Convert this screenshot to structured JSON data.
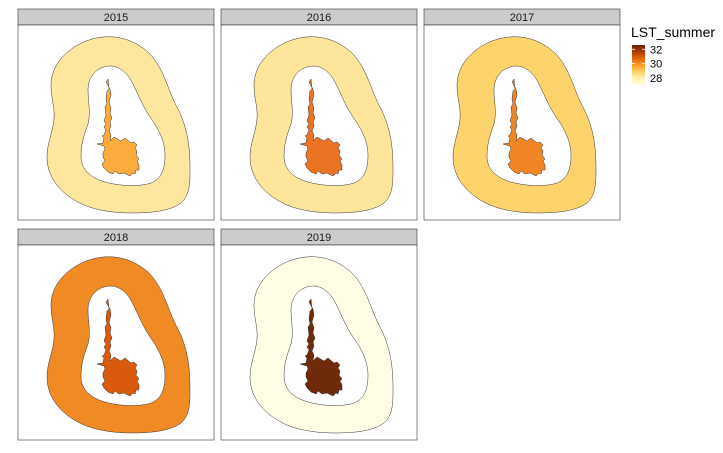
{
  "legend": {
    "title": "LST_summer",
    "ticks": [
      {
        "value": 28,
        "label": "28"
      },
      {
        "value": 30,
        "label": "30"
      },
      {
        "value": 32,
        "label": "32"
      }
    ],
    "range": [
      27,
      32.6
    ],
    "colors": [
      "#FFFFE5",
      "#FFF7BC",
      "#FEE391",
      "#FEC44F",
      "#FE9929",
      "#EC7014",
      "#CC4C02",
      "#993404",
      "#662506"
    ]
  },
  "panels": [
    {
      "year": "2015",
      "buffer_lst": 28.2,
      "urban_lst": 29.3,
      "buffer_color": "#FDE79E",
      "urban_color": "#FBAC3C"
    },
    {
      "year": "2016",
      "buffer_lst": 28.1,
      "urban_lst": 30.8,
      "buffer_color": "#FDE69C",
      "urban_color": "#EB7424"
    },
    {
      "year": "2017",
      "buffer_lst": 28.8,
      "urban_lst": 30.6,
      "buffer_color": "#FDD36C",
      "urban_color": "#F08526"
    },
    {
      "year": "2018",
      "buffer_lst": 30.4,
      "urban_lst": 31.1,
      "buffer_color": "#F08A24",
      "urban_color": "#D95A0C"
    },
    {
      "year": "2019",
      "buffer_lst": 27.2,
      "urban_lst": 32.5,
      "buffer_color": "#FFFDE6",
      "urban_color": "#6E2A0A"
    }
  ]
}
